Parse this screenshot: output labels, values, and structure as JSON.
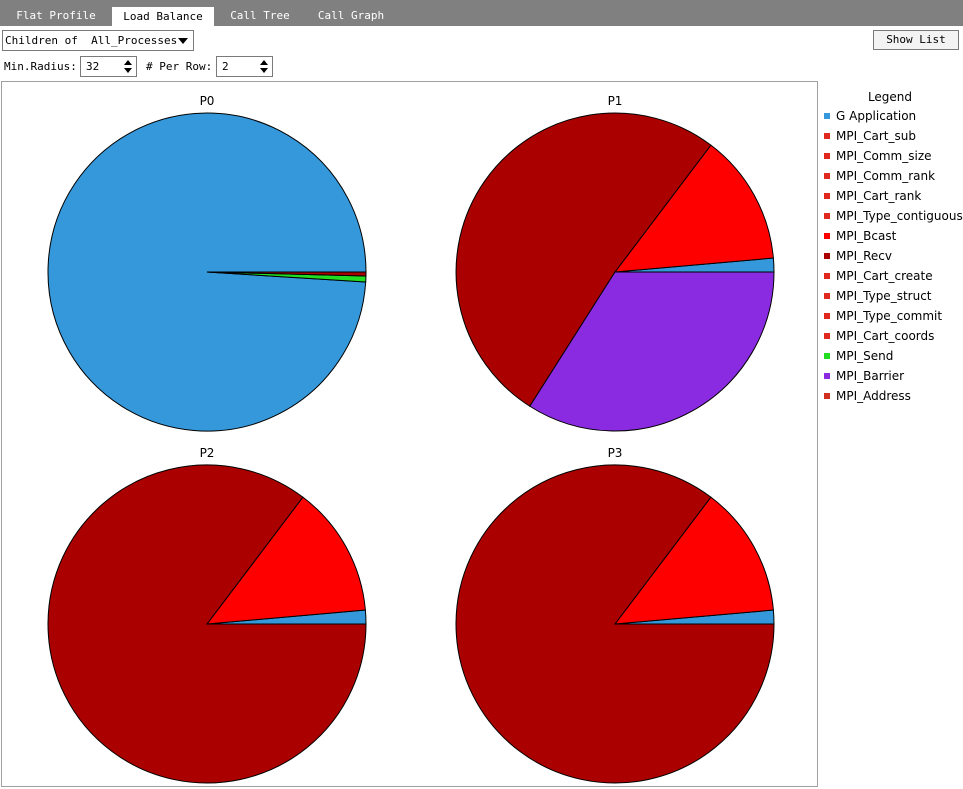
{
  "tabs": [
    {
      "label": "Flat Profile",
      "active": false
    },
    {
      "label": "Load Balance",
      "active": true
    },
    {
      "label": "Call Tree",
      "active": false
    },
    {
      "label": "Call Graph",
      "active": false
    }
  ],
  "controls": {
    "children_select": "Children of  All_Processes",
    "show_list_label": "Show List",
    "min_radius_label": "Min.Radius:",
    "min_radius_value": "32",
    "per_row_label": "# Per Row:",
    "per_row_value": "2"
  },
  "legend": {
    "title": "Legend",
    "items": [
      {
        "name": "G Application",
        "color": "#3498db"
      },
      {
        "name": "MPI_Cart_sub",
        "color": "#e0281e"
      },
      {
        "name": "MPI_Comm_size",
        "color": "#e0281e"
      },
      {
        "name": "MPI_Comm_rank",
        "color": "#e0281e"
      },
      {
        "name": "MPI_Cart_rank",
        "color": "#e0281e"
      },
      {
        "name": "MPI_Type_contiguous",
        "color": "#e0281e"
      },
      {
        "name": "MPI_Bcast",
        "color": "#ff0000"
      },
      {
        "name": "MPI_Recv",
        "color": "#aa0000"
      },
      {
        "name": "MPI_Cart_create",
        "color": "#e0281e"
      },
      {
        "name": "MPI_Type_struct",
        "color": "#e0281e"
      },
      {
        "name": "MPI_Type_commit",
        "color": "#e0281e"
      },
      {
        "name": "MPI_Cart_coords",
        "color": "#e0281e"
      },
      {
        "name": "MPI_Send",
        "color": "#22dd22"
      },
      {
        "name": "MPI_Barrier",
        "color": "#8a2be2"
      },
      {
        "name": "MPI_Address",
        "color": "#d03020"
      }
    ]
  },
  "chart_data": [
    {
      "type": "pie",
      "title": "P0",
      "slices": [
        {
          "label": "G Application",
          "value": 99.0,
          "color": "#3498db"
        },
        {
          "label": "MPI_Send",
          "value": 0.6,
          "color": "#22dd22"
        },
        {
          "label": "MPI_Recv",
          "value": 0.4,
          "color": "#aa0000"
        }
      ]
    },
    {
      "type": "pie",
      "title": "P1",
      "slices": [
        {
          "label": "G Application",
          "value": 1.4,
          "color": "#3498db"
        },
        {
          "label": "MPI_Bcast",
          "value": 13.3,
          "color": "#ff0000"
        },
        {
          "label": "MPI_Recv",
          "value": 51.3,
          "color": "#aa0000"
        },
        {
          "label": "MPI_Barrier",
          "value": 34.0,
          "color": "#8a2be2"
        }
      ]
    },
    {
      "type": "pie",
      "title": "P2",
      "slices": [
        {
          "label": "G Application",
          "value": 1.4,
          "color": "#3498db"
        },
        {
          "label": "MPI_Bcast",
          "value": 13.3,
          "color": "#ff0000"
        },
        {
          "label": "MPI_Recv",
          "value": 85.3,
          "color": "#aa0000"
        }
      ]
    },
    {
      "type": "pie",
      "title": "P3",
      "slices": [
        {
          "label": "G Application",
          "value": 1.4,
          "color": "#3498db"
        },
        {
          "label": "MPI_Bcast",
          "value": 13.3,
          "color": "#ff0000"
        },
        {
          "label": "MPI_Recv",
          "value": 85.3,
          "color": "#aa0000"
        }
      ]
    }
  ]
}
